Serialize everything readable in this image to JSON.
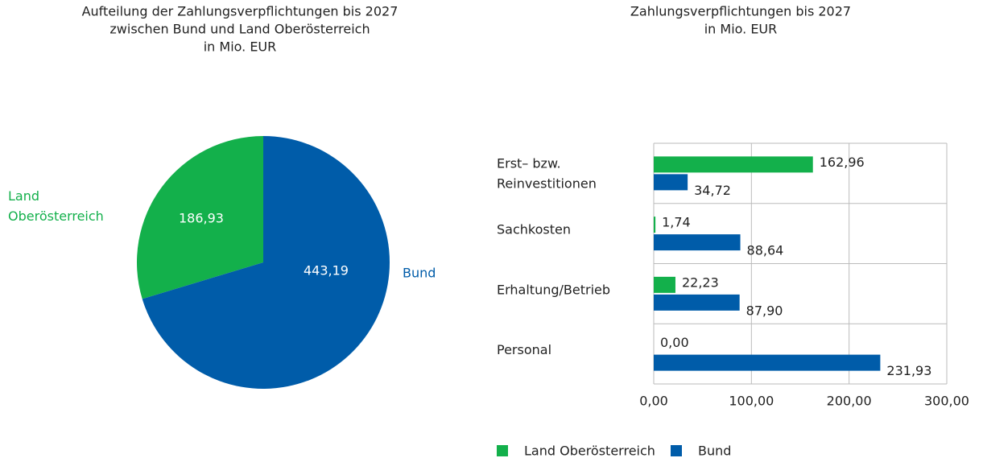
{
  "chart_data": [
    {
      "type": "pie",
      "title": [
        "Aufteilung der Zahlungsverpflichtungen bis 2027",
        "zwischen Bund und Land Oberösterreich",
        "in Mio. EUR"
      ],
      "categories": [
        "Land Oberösterreich",
        "Bund"
      ],
      "values": [
        186.93,
        443.19
      ],
      "value_labels": [
        "186,93",
        "443,19"
      ],
      "colors": [
        "#13b04b",
        "#005ca9"
      ]
    },
    {
      "type": "bar",
      "orientation": "horizontal",
      "title": [
        "Zahlungsverpflichtungen bis 2027",
        "in Mio. EUR"
      ],
      "categories": [
        "Erst– bzw. Reinvestitionen",
        "Sachkosten",
        "Erhaltung/Betrieb",
        "Personal"
      ],
      "series": [
        {
          "name": "Land Oberösterreich",
          "color": "#13b04b",
          "values": [
            162.96,
            1.74,
            22.23,
            0
          ],
          "value_labels": [
            "162,96",
            "1,74",
            "22,23",
            "0,00"
          ]
        },
        {
          "name": "Bund",
          "color": "#005ca9",
          "values": [
            34.72,
            88.64,
            87.9,
            231.93
          ],
          "value_labels": [
            "34,72",
            "88,64",
            "87,90",
            "231,93"
          ]
        }
      ],
      "xlim": [
        0,
        300
      ],
      "xticks": [
        {
          "value": 0,
          "label": "0,00"
        },
        {
          "value": 100,
          "label": "100,00"
        },
        {
          "value": 200,
          "label": "200,00"
        },
        {
          "value": 300,
          "label": "300,00"
        }
      ],
      "grid": true,
      "legend": "bottom"
    }
  ]
}
